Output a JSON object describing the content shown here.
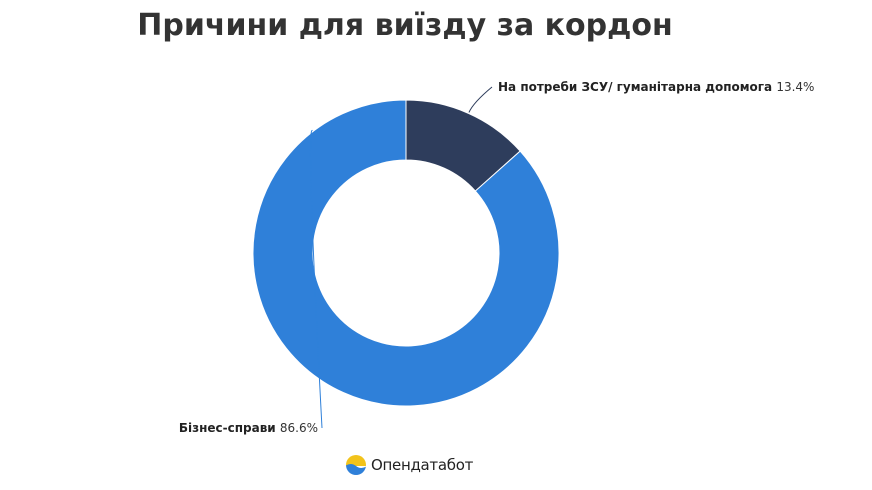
{
  "chart_data": {
    "type": "pie",
    "title": "Причини для виїзду за кордон",
    "donut": true,
    "slices": [
      {
        "label": "На потреби ЗСУ/ гуманітарна допомога",
        "value": 13.4,
        "value_label": "13.4%",
        "color": "#2e3d5c"
      },
      {
        "label": "Бізнес-справи",
        "value": 86.6,
        "value_label": "86.6%",
        "color": "#2f80d9"
      }
    ]
  },
  "logo": {
    "text": "Опендатабот",
    "icon": "opendatabot-logo-icon",
    "colors": {
      "top": "#f2c31b",
      "bottom": "#2f80d9"
    }
  }
}
